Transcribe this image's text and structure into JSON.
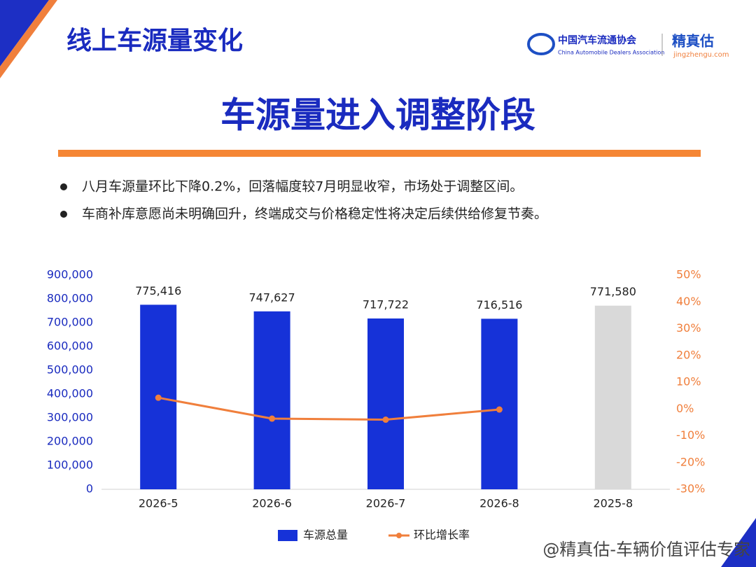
{
  "header": {
    "title": "线上车源量变化",
    "org_cn": "中国汽车流通协会",
    "org_en": "China Automobile Dealers Association",
    "brand": "精真估",
    "brand_url": "jingzhengu.com"
  },
  "headline": "车源量进入调整阶段",
  "bullets": [
    "八月车源量环比下降0.2%，回落幅度较7月明显收窄，市场处于调整区间。",
    "车商补库意愿尚未明确回升，终端成交与价格稳定性将决定后续供给修复节奏。"
  ],
  "watermark": "@精真估-车辆价值评估专家",
  "chart_data": {
    "type": "bar",
    "categories": [
      "2026-5",
      "2026-6",
      "2026-7",
      "2026-8",
      "2025-8"
    ],
    "series": [
      {
        "name": "车源总量",
        "type": "bar",
        "color": "#1632d8",
        "colors": [
          "#1632d8",
          "#1632d8",
          "#1632d8",
          "#1632d8",
          "#d9d9d9"
        ],
        "values": [
          775416,
          747627,
          717722,
          716516,
          771580
        ],
        "value_labels": [
          "775,416",
          "747,627",
          "717,722",
          "716,516",
          "771,580"
        ]
      },
      {
        "name": "环比增长率",
        "type": "line",
        "color": "#f07f3c",
        "axis": "y2",
        "values": [
          4.2,
          -3.6,
          -4.0,
          -0.2,
          null
        ]
      }
    ],
    "ylim": [
      0,
      900000
    ],
    "yticks": [
      0,
      {
        "value": 100000,
        "label": "100,000"
      },
      {
        "value": 200000,
        "label": "200,000"
      },
      {
        "value": 300000,
        "label": "300,000"
      },
      {
        "value": 400000,
        "label": "400,000"
      },
      {
        "value": 500000,
        "label": "500,000"
      },
      {
        "value": 600000,
        "label": "600,000"
      },
      {
        "value": 700000,
        "label": "700,000"
      },
      {
        "value": 800000,
        "label": "800,000"
      },
      {
        "value": 900000,
        "label": "900,000"
      }
    ],
    "y2lim": [
      -30,
      50
    ],
    "y2ticks": [
      {
        "value": -30,
        "label": "-30%"
      },
      {
        "value": -20,
        "label": "-20%"
      },
      {
        "value": -10,
        "label": "-10%"
      },
      {
        "value": 0,
        "label": "0%"
      },
      {
        "value": 10,
        "label": "10%"
      },
      {
        "value": 20,
        "label": "20%"
      },
      {
        "value": 30,
        "label": "30%"
      },
      {
        "value": 40,
        "label": "40%"
      },
      {
        "value": 50,
        "label": "50%"
      }
    ],
    "legend": "bottom"
  }
}
